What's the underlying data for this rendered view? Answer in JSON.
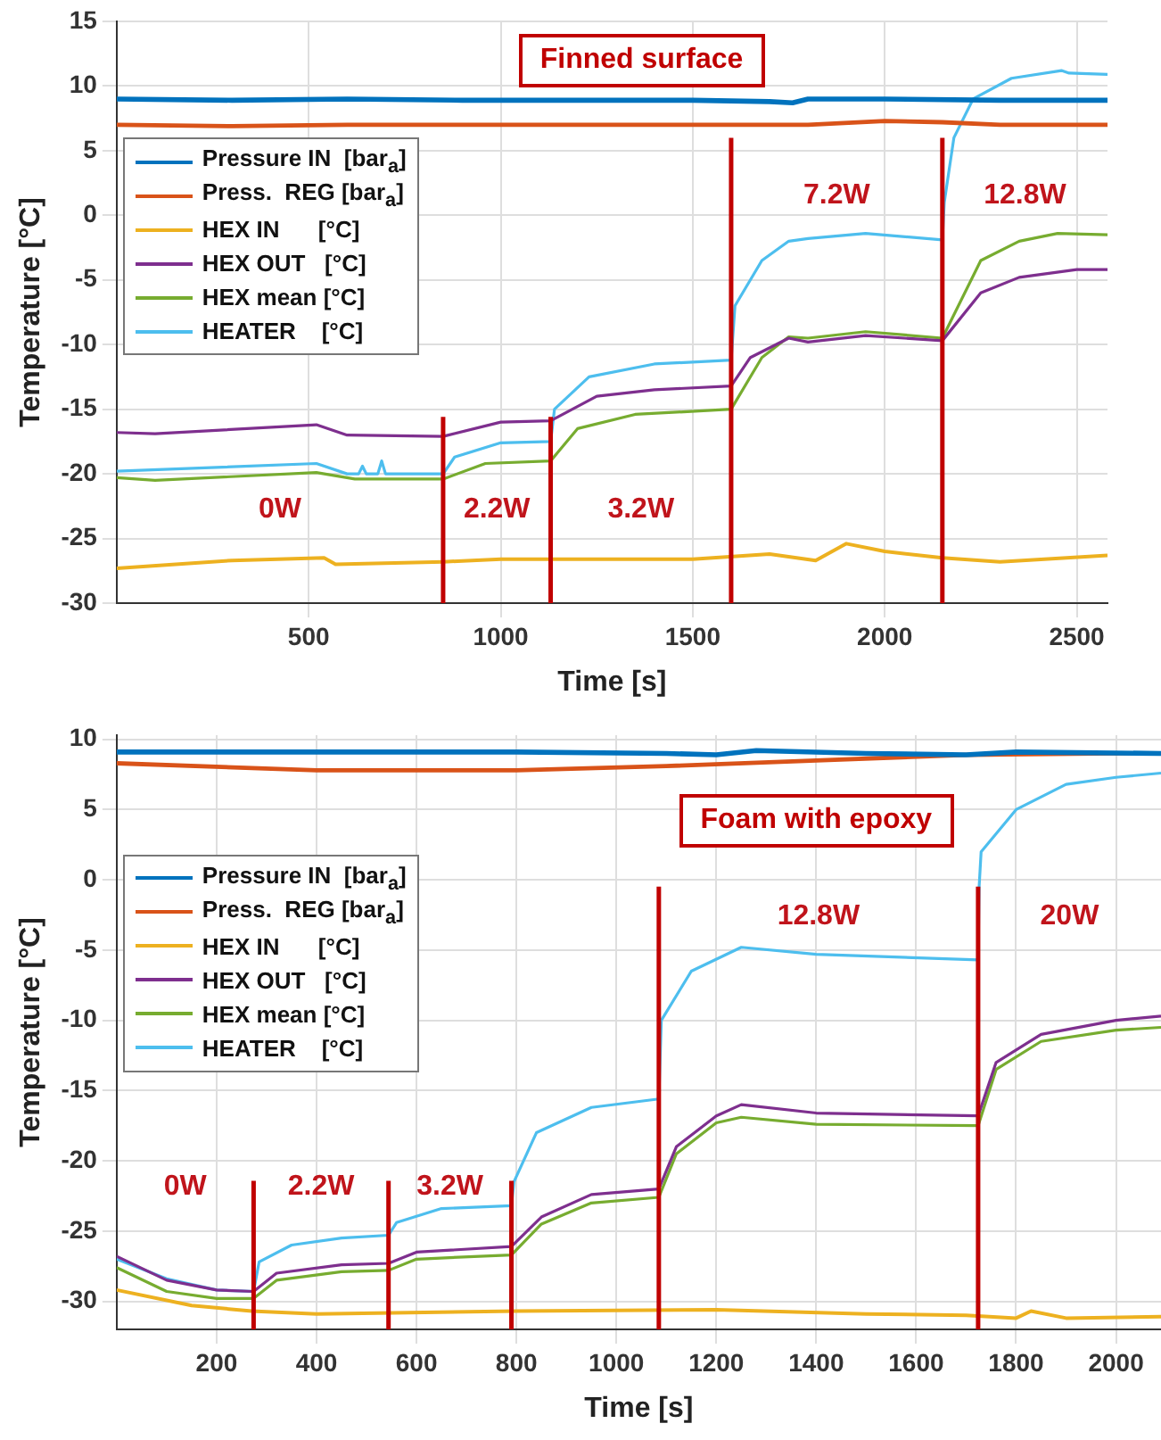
{
  "chart_data": [
    {
      "type": "line",
      "title": "Finned surface",
      "xlabel": "Time [s]",
      "ylabel": "Temperature [°C]",
      "xlim": [
        0,
        2580
      ],
      "xticks": [
        500,
        1000,
        1500,
        2000,
        2500
      ],
      "ylim": [
        -30,
        15
      ],
      "yticks": [
        -30,
        -25,
        -20,
        -15,
        -10,
        -5,
        0,
        5,
        10,
        15
      ],
      "grid": true,
      "legend": "top left",
      "marker": "none",
      "line_style": "solid",
      "series": [
        {
          "name": "Pressure IN  [bar$_{a}$]",
          "color": "#0072bd",
          "x": [
            0,
            300,
            600,
            900,
            1200,
            1500,
            1700,
            1760,
            1800,
            2000,
            2300,
            2580
          ],
          "values": [
            9.0,
            8.9,
            9.0,
            8.9,
            8.9,
            8.9,
            8.8,
            8.7,
            9.0,
            9.0,
            8.9,
            8.9
          ]
        },
        {
          "name": "Press.  REG [bar$_{a}$]",
          "color": "#d95319",
          "x": [
            0,
            300,
            600,
            900,
            1200,
            1500,
            1800,
            2000,
            2150,
            2300,
            2580
          ],
          "values": [
            7.0,
            6.9,
            7.0,
            7.0,
            7.0,
            7.0,
            7.0,
            7.3,
            7.2,
            7.0,
            7.0
          ]
        },
        {
          "name": "HEX IN      [°C]",
          "color": "#edb120",
          "x": [
            0,
            300,
            540,
            570,
            850,
            1000,
            1500,
            1700,
            1820,
            1900,
            2000,
            2150,
            2300,
            2580
          ],
          "values": [
            -27.3,
            -26.7,
            -26.5,
            -27.0,
            -26.8,
            -26.6,
            -26.6,
            -26.2,
            -26.7,
            -25.4,
            -26.0,
            -26.5,
            -26.8,
            -26.3
          ]
        },
        {
          "name": "HEX OUT   [°C]",
          "color": "#7e2f8e",
          "x": [
            0,
            100,
            520,
            600,
            850,
            1000,
            1130,
            1250,
            1400,
            1600,
            1650,
            1750,
            1800,
            1950,
            2150,
            2250,
            2350,
            2500,
            2580
          ],
          "values": [
            -16.8,
            -16.9,
            -16.2,
            -17.0,
            -17.1,
            -16.0,
            -15.9,
            -14.0,
            -13.5,
            -13.2,
            -11.0,
            -9.5,
            -9.8,
            -9.3,
            -9.7,
            -6.0,
            -4.8,
            -4.2,
            -4.2
          ]
        },
        {
          "name": "HEX mean [°C]",
          "color": "#77ac30",
          "x": [
            0,
            100,
            520,
            620,
            850,
            960,
            1130,
            1200,
            1350,
            1600,
            1680,
            1750,
            1800,
            1950,
            2150,
            2250,
            2350,
            2450,
            2580
          ],
          "values": [
            -20.3,
            -20.5,
            -19.9,
            -20.4,
            -20.4,
            -19.2,
            -19.0,
            -16.5,
            -15.4,
            -15.0,
            -11.0,
            -9.4,
            -9.5,
            -9.0,
            -9.5,
            -3.5,
            -2.0,
            -1.4,
            -1.5
          ]
        },
        {
          "name": "HEATER    [°C]",
          "color": "#4dbeee",
          "x": [
            0,
            520,
            600,
            630,
            640,
            650,
            680,
            690,
            700,
            850,
            880,
            1000,
            1130,
            1140,
            1230,
            1400,
            1600,
            1610,
            1680,
            1750,
            1800,
            1950,
            2150,
            2155,
            2180,
            2230,
            2330,
            2460,
            2480,
            2580
          ],
          "values": [
            -19.8,
            -19.2,
            -20.0,
            -20.0,
            -19.4,
            -20.0,
            -20.0,
            -19.0,
            -20.0,
            -20.0,
            -18.7,
            -17.6,
            -17.5,
            -15.0,
            -12.5,
            -11.5,
            -11.2,
            -7.0,
            -3.5,
            -2.0,
            -1.8,
            -1.4,
            -1.9,
            1.0,
            6.0,
            9.0,
            10.6,
            11.2,
            11.0,
            10.9
          ]
        }
      ],
      "ref_lines": [
        {
          "axis": "x",
          "value": 850,
          "color": "#c00000"
        },
        {
          "axis": "x",
          "value": 1130,
          "color": "#c00000"
        },
        {
          "axis": "x",
          "value": 1600,
          "color": "#c00000"
        },
        {
          "axis": "x",
          "value": 2150,
          "color": "#c00000"
        }
      ],
      "annotations": [
        "0W",
        "2.2W",
        "3.2W",
        "7.2W",
        "12.8W"
      ]
    },
    {
      "type": "line",
      "title": "Foam with epoxy",
      "xlabel": "Time [s]",
      "ylabel": "Temperature [°C]",
      "xlim": [
        0,
        2090
      ],
      "xticks": [
        200,
        400,
        600,
        800,
        1000,
        1200,
        1400,
        1600,
        1800,
        2000
      ],
      "ylim": [
        -32,
        10.3
      ],
      "yticks": [
        -30,
        -25,
        -20,
        -15,
        -10,
        -5,
        0,
        5,
        10
      ],
      "grid": true,
      "legend": "top left",
      "marker": "none",
      "line_style": "solid",
      "series": [
        {
          "name": "Pressure IN  [bar$_{a}$]",
          "color": "#0072bd",
          "x": [
            0,
            400,
            800,
            1100,
            1200,
            1280,
            1500,
            1700,
            1800,
            2090
          ],
          "values": [
            9.1,
            9.1,
            9.1,
            9.0,
            8.9,
            9.2,
            9.0,
            8.9,
            9.1,
            9.0
          ]
        },
        {
          "name": "Press.  REG [bar$_{a}$]",
          "color": "#d95319",
          "x": [
            0,
            400,
            800,
            1100,
            1400,
            1700,
            2000,
            2090
          ],
          "values": [
            8.3,
            7.8,
            7.8,
            8.1,
            8.5,
            8.9,
            9.0,
            9.0
          ]
        },
        {
          "name": "HEX IN      [°C]",
          "color": "#edb120",
          "x": [
            0,
            150,
            270,
            400,
            800,
            1200,
            1500,
            1700,
            1800,
            1830,
            1900,
            2090
          ],
          "values": [
            -29.2,
            -30.3,
            -30.7,
            -30.9,
            -30.7,
            -30.6,
            -30.9,
            -31.0,
            -31.2,
            -30.7,
            -31.2,
            -31.1
          ]
        },
        {
          "name": "HEX OUT   [°C]",
          "color": "#7e2f8e",
          "x": [
            0,
            100,
            200,
            274,
            320,
            450,
            544,
            600,
            790,
            850,
            950,
            1085,
            1120,
            1200,
            1250,
            1400,
            1724,
            1760,
            1850,
            2000,
            2090
          ],
          "values": [
            -26.8,
            -28.5,
            -29.2,
            -29.3,
            -28.0,
            -27.4,
            -27.3,
            -26.5,
            -26.1,
            -24.0,
            -22.4,
            -22.0,
            -19.0,
            -16.8,
            -16.0,
            -16.6,
            -16.8,
            -13.0,
            -11.0,
            -10.0,
            -9.7
          ]
        },
        {
          "name": "HEX mean [°C]",
          "color": "#77ac30",
          "x": [
            0,
            100,
            200,
            274,
            320,
            450,
            544,
            600,
            790,
            850,
            950,
            1085,
            1120,
            1200,
            1250,
            1400,
            1724,
            1760,
            1850,
            2000,
            2090
          ],
          "values": [
            -27.6,
            -29.3,
            -29.8,
            -29.8,
            -28.5,
            -27.9,
            -27.8,
            -27.0,
            -26.7,
            -24.5,
            -23.0,
            -22.6,
            -19.5,
            -17.3,
            -16.9,
            -17.4,
            -17.5,
            -13.5,
            -11.5,
            -10.7,
            -10.5
          ]
        },
        {
          "name": "HEATER    [°C]",
          "color": "#4dbeee",
          "x": [
            0,
            100,
            200,
            274,
            285,
            350,
            450,
            544,
            560,
            650,
            790,
            795,
            840,
            950,
            1085,
            1090,
            1150,
            1250,
            1400,
            1724,
            1726,
            1730,
            1800,
            1900,
            2000,
            2090
          ],
          "values": [
            -27.0,
            -28.4,
            -29.2,
            -29.3,
            -27.2,
            -26.0,
            -25.5,
            -25.3,
            -24.4,
            -23.4,
            -23.2,
            -21.5,
            -18.0,
            -16.2,
            -15.6,
            -10.0,
            -6.5,
            -4.8,
            -5.3,
            -5.7,
            -0.5,
            2.0,
            5.0,
            6.8,
            7.3,
            7.6
          ]
        }
      ],
      "ref_lines": [
        {
          "axis": "x",
          "value": 274,
          "color": "#c00000"
        },
        {
          "axis": "x",
          "value": 544,
          "color": "#c00000"
        },
        {
          "axis": "x",
          "value": 790,
          "color": "#c00000"
        },
        {
          "axis": "x",
          "value": 1085,
          "color": "#c00000"
        },
        {
          "axis": "x",
          "value": 1724,
          "color": "#c00000"
        }
      ],
      "annotations": [
        "0W",
        "2.2W",
        "3.2W",
        "12.8W",
        "20W"
      ]
    }
  ]
}
